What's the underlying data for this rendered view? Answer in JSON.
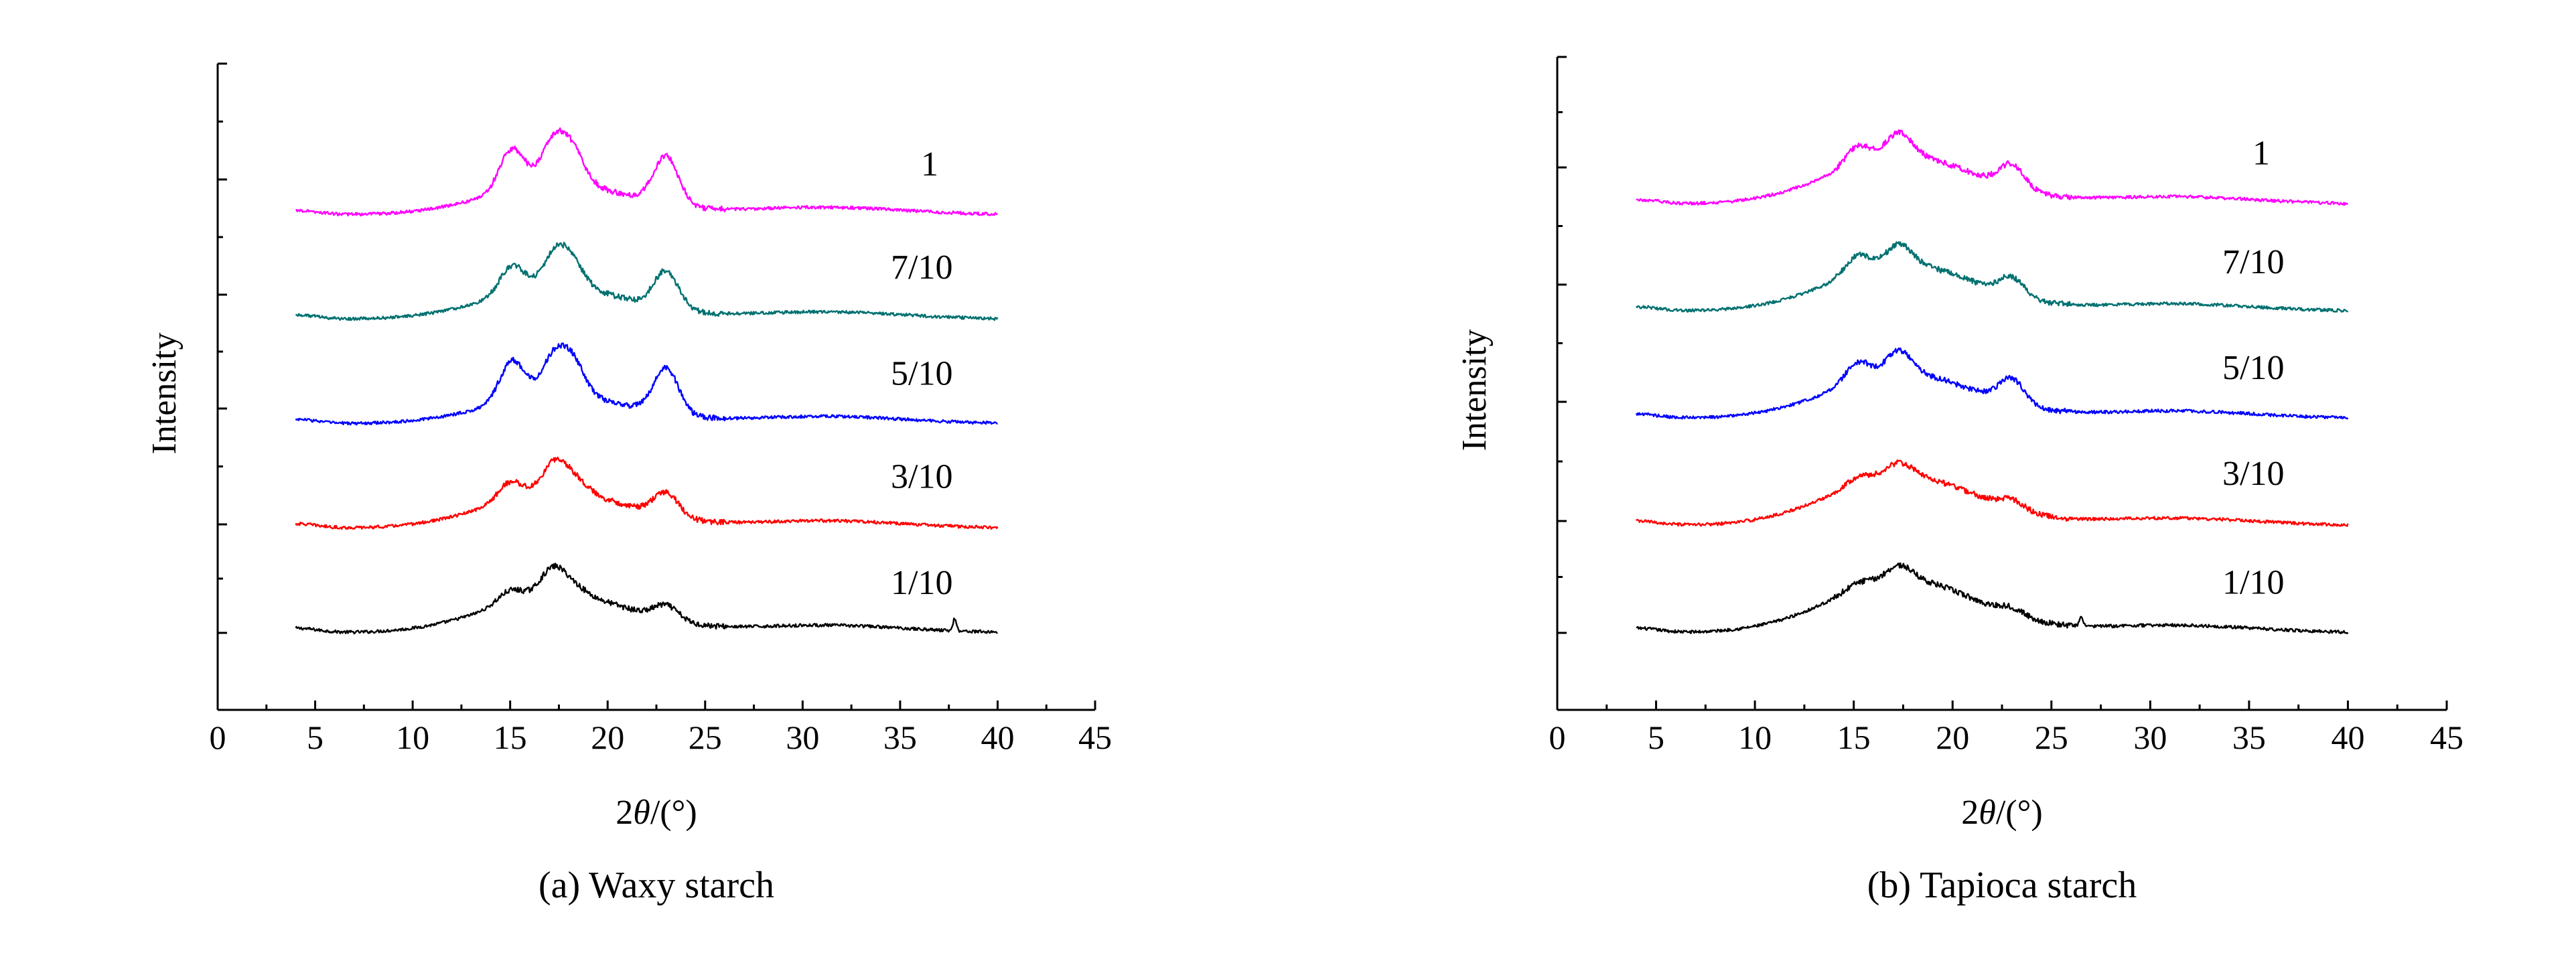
{
  "chart_data": [
    {
      "type": "line",
      "caption": "(a) Waxy starch",
      "xlabel_num": "2",
      "xlabel_var": "θ",
      "xlabel_unit": "/(°)",
      "ylabel": "Intensity",
      "xlim": [
        0,
        45
      ],
      "xticks": [
        0,
        5,
        10,
        15,
        20,
        25,
        30,
        35,
        40,
        45
      ],
      "y_ticks_labeled": false,
      "grid": false,
      "series": [
        {
          "name": "1/10",
          "color": "#000000",
          "offset": 0,
          "peaks": [
            [
              15,
              2.4
            ],
            [
              17.2,
              5.2
            ],
            [
              18.3,
              1.6
            ],
            [
              23,
              2.8
            ]
          ],
          "hump": 7.5,
          "spike": [
            37.8,
            2.5
          ]
        },
        {
          "name": "3/10",
          "color": "#ff0000",
          "offset": 1,
          "peaks": [
            [
              15,
              3.6
            ],
            [
              17.3,
              6
            ],
            [
              18.4,
              2.4
            ],
            [
              23,
              4.6
            ]
          ],
          "hump": 7.0,
          "spike": null
        },
        {
          "name": "5/10",
          "color": "#0000ff",
          "offset": 2,
          "peaks": [
            [
              15.1,
              8
            ],
            [
              17.2,
              7
            ],
            [
              18.2,
              6.5
            ],
            [
              23,
              9
            ]
          ],
          "hump": 5.5,
          "spike": null
        },
        {
          "name": "7/10",
          "color": "#007070",
          "offset": 3,
          "peaks": [
            [
              15.1,
              5.6
            ],
            [
              17.3,
              6.4
            ],
            [
              18.2,
              4.4
            ],
            [
              23,
              7.3
            ]
          ],
          "hump": 6.2,
          "spike": null
        },
        {
          "name": "1",
          "color": "#ff00ff",
          "offset": 4,
          "peaks": [
            [
              15.1,
              8.2
            ],
            [
              17.2,
              8
            ],
            [
              18.2,
              6.2
            ],
            [
              23,
              9.5
            ]
          ],
          "hump": 6.0,
          "spike": null
        }
      ]
    },
    {
      "type": "line",
      "caption": "(b) Tapioca starch",
      "xlabel_num": "2",
      "xlabel_var": "θ",
      "xlabel_unit": "/(°)",
      "ylabel": "Intensity",
      "xlim": [
        0,
        45
      ],
      "xticks": [
        0,
        5,
        10,
        15,
        20,
        25,
        30,
        35,
        40,
        45
      ],
      "y_ticks_labeled": false,
      "grid": false,
      "series": [
        {
          "name": "1/10",
          "color": "#000000",
          "offset": 0,
          "peaks": [
            [
              15.2,
              1.2
            ],
            [
              17.3,
              2.8
            ],
            [
              23,
              1.4
            ]
          ],
          "hump": 10.5,
          "spike": [
            26.5,
            2.0
          ]
        },
        {
          "name": "3/10",
          "color": "#ff0000",
          "offset": 1,
          "peaks": [
            [
              15.2,
              1.6
            ],
            [
              17.3,
              2.6
            ],
            [
              23,
              1.8
            ]
          ],
          "hump": 9.8,
          "spike": null
        },
        {
          "name": "5/10",
          "color": "#0000ff",
          "offset": 2,
          "peaks": [
            [
              15.2,
              3.8
            ],
            [
              17.3,
              4.6
            ],
            [
              23,
              4.8
            ]
          ],
          "hump": 8.8,
          "spike": null
        },
        {
          "name": "7/10",
          "color": "#007070",
          "offset": 3,
          "peaks": [
            [
              15.2,
              3.4
            ],
            [
              17.3,
              4.0
            ],
            [
              23,
              3.6
            ]
          ],
          "hump": 9.2,
          "spike": null
        },
        {
          "name": "1",
          "color": "#ff00ff",
          "offset": 4,
          "peaks": [
            [
              15.2,
              3.6
            ],
            [
              17.3,
              4.6
            ],
            [
              23,
              4.6
            ]
          ],
          "hump": 9.5,
          "spike": null
        }
      ]
    }
  ]
}
